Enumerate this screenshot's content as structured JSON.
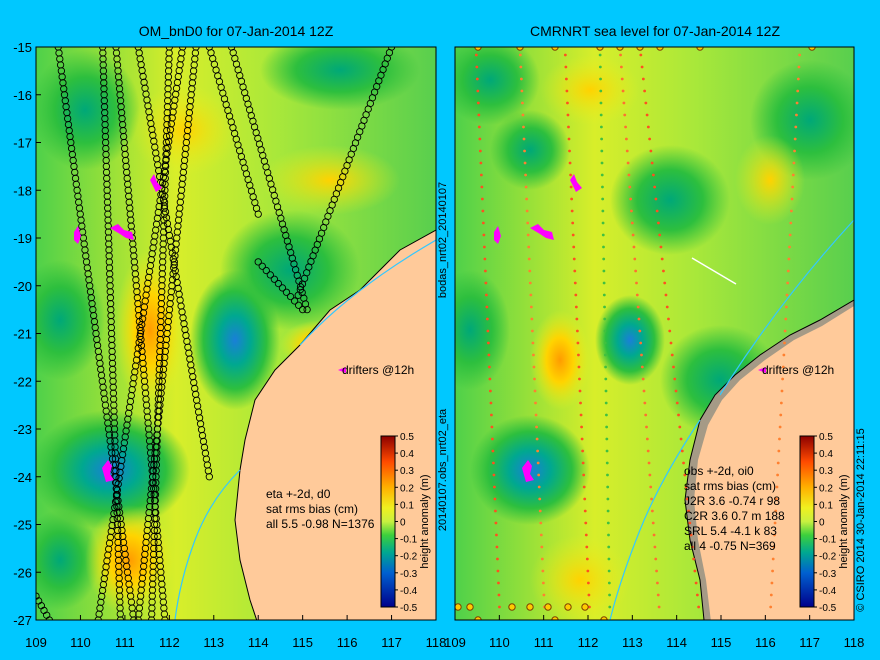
{
  "side_labels": {
    "top": "bodas_nrt02_20140107",
    "bottom": "20140107.obs_nrt02_eta",
    "credit": "© CSIRO 2014   30-Jan-2014 22:11:15"
  },
  "chart_data": [
    {
      "type": "heatmap",
      "title": "OM_bnD0 for 07-Jan-2014 12Z",
      "xlim": [
        109,
        118
      ],
      "ylim": [
        -27,
        -15
      ],
      "x_ticks": [
        109,
        110,
        111,
        112,
        113,
        114,
        115,
        116,
        117,
        118
      ],
      "y_ticks": [
        -15,
        -16,
        -17,
        -18,
        -19,
        -20,
        -21,
        -22,
        -23,
        -24,
        -25,
        -26,
        -27
      ],
      "colorbar": {
        "label": "height anomaly (m)",
        "range": [
          -0.5,
          0.5
        ],
        "ticks": [
          0.5,
          0.4,
          0.3,
          0.2,
          0.1,
          0,
          -0.1,
          -0.2,
          -0.3,
          -0.4,
          -0.5
        ]
      },
      "annotations": {
        "drifters": "drifters @12h",
        "stats": [
          "eta +-2d, d0",
          "sat rms bias (cm)",
          "all 5.5 -0.98 N=1376"
        ]
      },
      "tracks": [
        {
          "from": [
            109.5,
            -15
          ],
          "to": [
            111.2,
            -27
          ]
        },
        {
          "from": [
            110.5,
            -15
          ],
          "to": [
            110.9,
            -27
          ]
        },
        {
          "from": [
            110.8,
            -15
          ],
          "to": [
            111.9,
            -27
          ]
        },
        {
          "from": [
            111.3,
            -15
          ],
          "to": [
            112.9,
            -24
          ]
        },
        {
          "from": [
            112.3,
            -15
          ],
          "to": [
            110.4,
            -27
          ]
        },
        {
          "from": [
            112.6,
            -15
          ],
          "to": [
            111.3,
            -27
          ]
        },
        {
          "from": [
            112.9,
            -15
          ],
          "to": [
            114.0,
            -18.5
          ]
        },
        {
          "from": [
            113.4,
            -15
          ],
          "to": [
            115.1,
            -20.5
          ]
        },
        {
          "from": [
            114.0,
            -19.5
          ],
          "to": [
            115.0,
            -20.5
          ]
        },
        {
          "from": [
            117.0,
            -15
          ],
          "to": [
            114.9,
            -20.2
          ]
        },
        {
          "from": [
            111.6,
            -27
          ],
          "to": [
            112.0,
            -15
          ]
        },
        {
          "from": [
            109.0,
            -26.5
          ],
          "to": [
            109.3,
            -27
          ]
        }
      ]
    },
    {
      "type": "heatmap",
      "title": "CMRNRT sea level  for 07-Jan-2014 12Z",
      "xlim": [
        109,
        118
      ],
      "ylim": [
        -27,
        -15
      ],
      "x_ticks": [
        109,
        110,
        111,
        112,
        113,
        114,
        115,
        116,
        117,
        118
      ],
      "colorbar": {
        "label": "height anomaly (m)",
        "range": [
          -0.5,
          0.5
        ],
        "ticks": [
          0.5,
          0.4,
          0.3,
          0.2,
          0.1,
          0,
          -0.1,
          -0.2,
          -0.3,
          -0.4,
          -0.5
        ]
      },
      "annotations": {
        "drifters": "drifters @12h",
        "stats": [
          "obs +-2d, oi0",
          "sat rms bias (cm)",
          "J2R   3.6 -0.74 r 98",
          "C2R   3.6 0.7 m 188",
          "SRL   5.4 -4.1 k 83",
          "all   4 -0.75 N=369"
        ]
      }
    }
  ]
}
